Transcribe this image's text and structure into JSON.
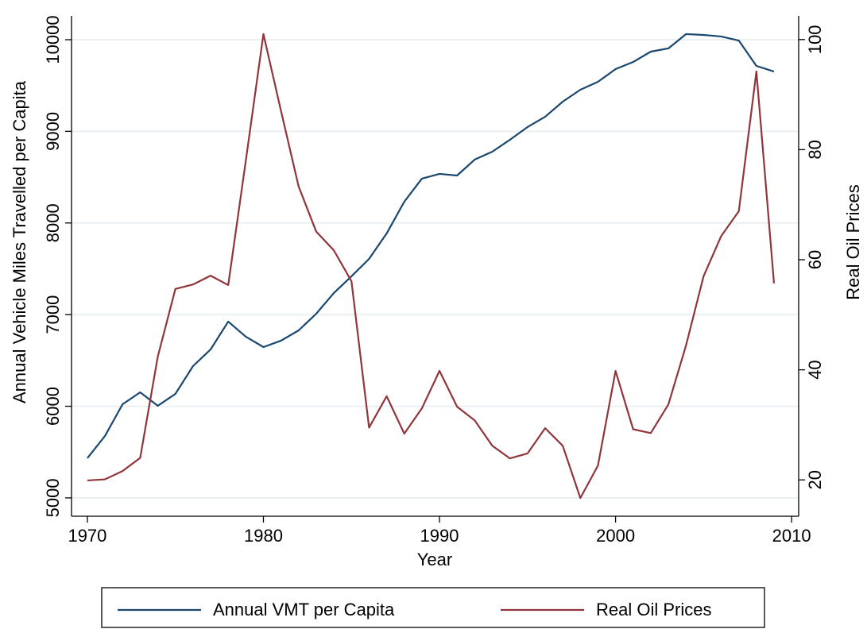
{
  "chart_data": {
    "type": "line",
    "x_label": "Year",
    "y_label": "Annual Vehicle Miles Travelled per Capita",
    "y2_label": "Real Oil Prices",
    "x": [
      1970,
      1971,
      1972,
      1973,
      1974,
      1975,
      1976,
      1977,
      1978,
      1979,
      1980,
      1981,
      1982,
      1983,
      1984,
      1985,
      1986,
      1987,
      1988,
      1989,
      1990,
      1991,
      1992,
      1993,
      1994,
      1995,
      1996,
      1997,
      1998,
      1999,
      2000,
      2001,
      2002,
      2003,
      2004,
      2005,
      2006,
      2007,
      2008,
      2009
    ],
    "series": [
      {
        "name": "Annual VMT per Capita",
        "color": "#1a476f",
        "values": [
          5433,
          5676,
          6022,
          6152,
          6005,
          6135,
          6438,
          6620,
          6924,
          6759,
          6646,
          6716,
          6828,
          7010,
          7236,
          7418,
          7608,
          7886,
          8232,
          8484,
          8536,
          8518,
          8692,
          8778,
          8908,
          9047,
          9159,
          9324,
          9454,
          9541,
          9679,
          9757,
          9870,
          9905,
          10061,
          10052,
          10035,
          9991,
          9714,
          9653
        ]
      },
      {
        "name": "Real Oil Prices",
        "color": "#90353b",
        "axis": "y2",
        "values": [
          19.9,
          20.1,
          21.6,
          24.0,
          42.4,
          54.7,
          55.5,
          57.1,
          55.4,
          78.0,
          101.0,
          87.0,
          73.3,
          65.1,
          61.7,
          56.1,
          29.5,
          35.2,
          28.4,
          33.0,
          39.8,
          33.3,
          30.8,
          26.2,
          23.9,
          24.8,
          29.4,
          26.2,
          16.7,
          22.6,
          39.8,
          29.2,
          28.5,
          33.7,
          44.4,
          57.0,
          64.3,
          68.8,
          94.2,
          55.7
        ]
      }
    ],
    "xlim": [
      1969.1,
      2010.4
    ],
    "xticks": [
      1970,
      1980,
      1990,
      2000,
      2010
    ],
    "ylim": [
      4800,
      10260
    ],
    "yticks": [
      5000,
      6000,
      7000,
      8000,
      9000,
      10000
    ],
    "y2lim": [
      13.4,
      104.3
    ],
    "y2ticks": [
      20,
      40,
      60,
      80,
      100
    ],
    "grid": true,
    "legend": "bottom"
  }
}
